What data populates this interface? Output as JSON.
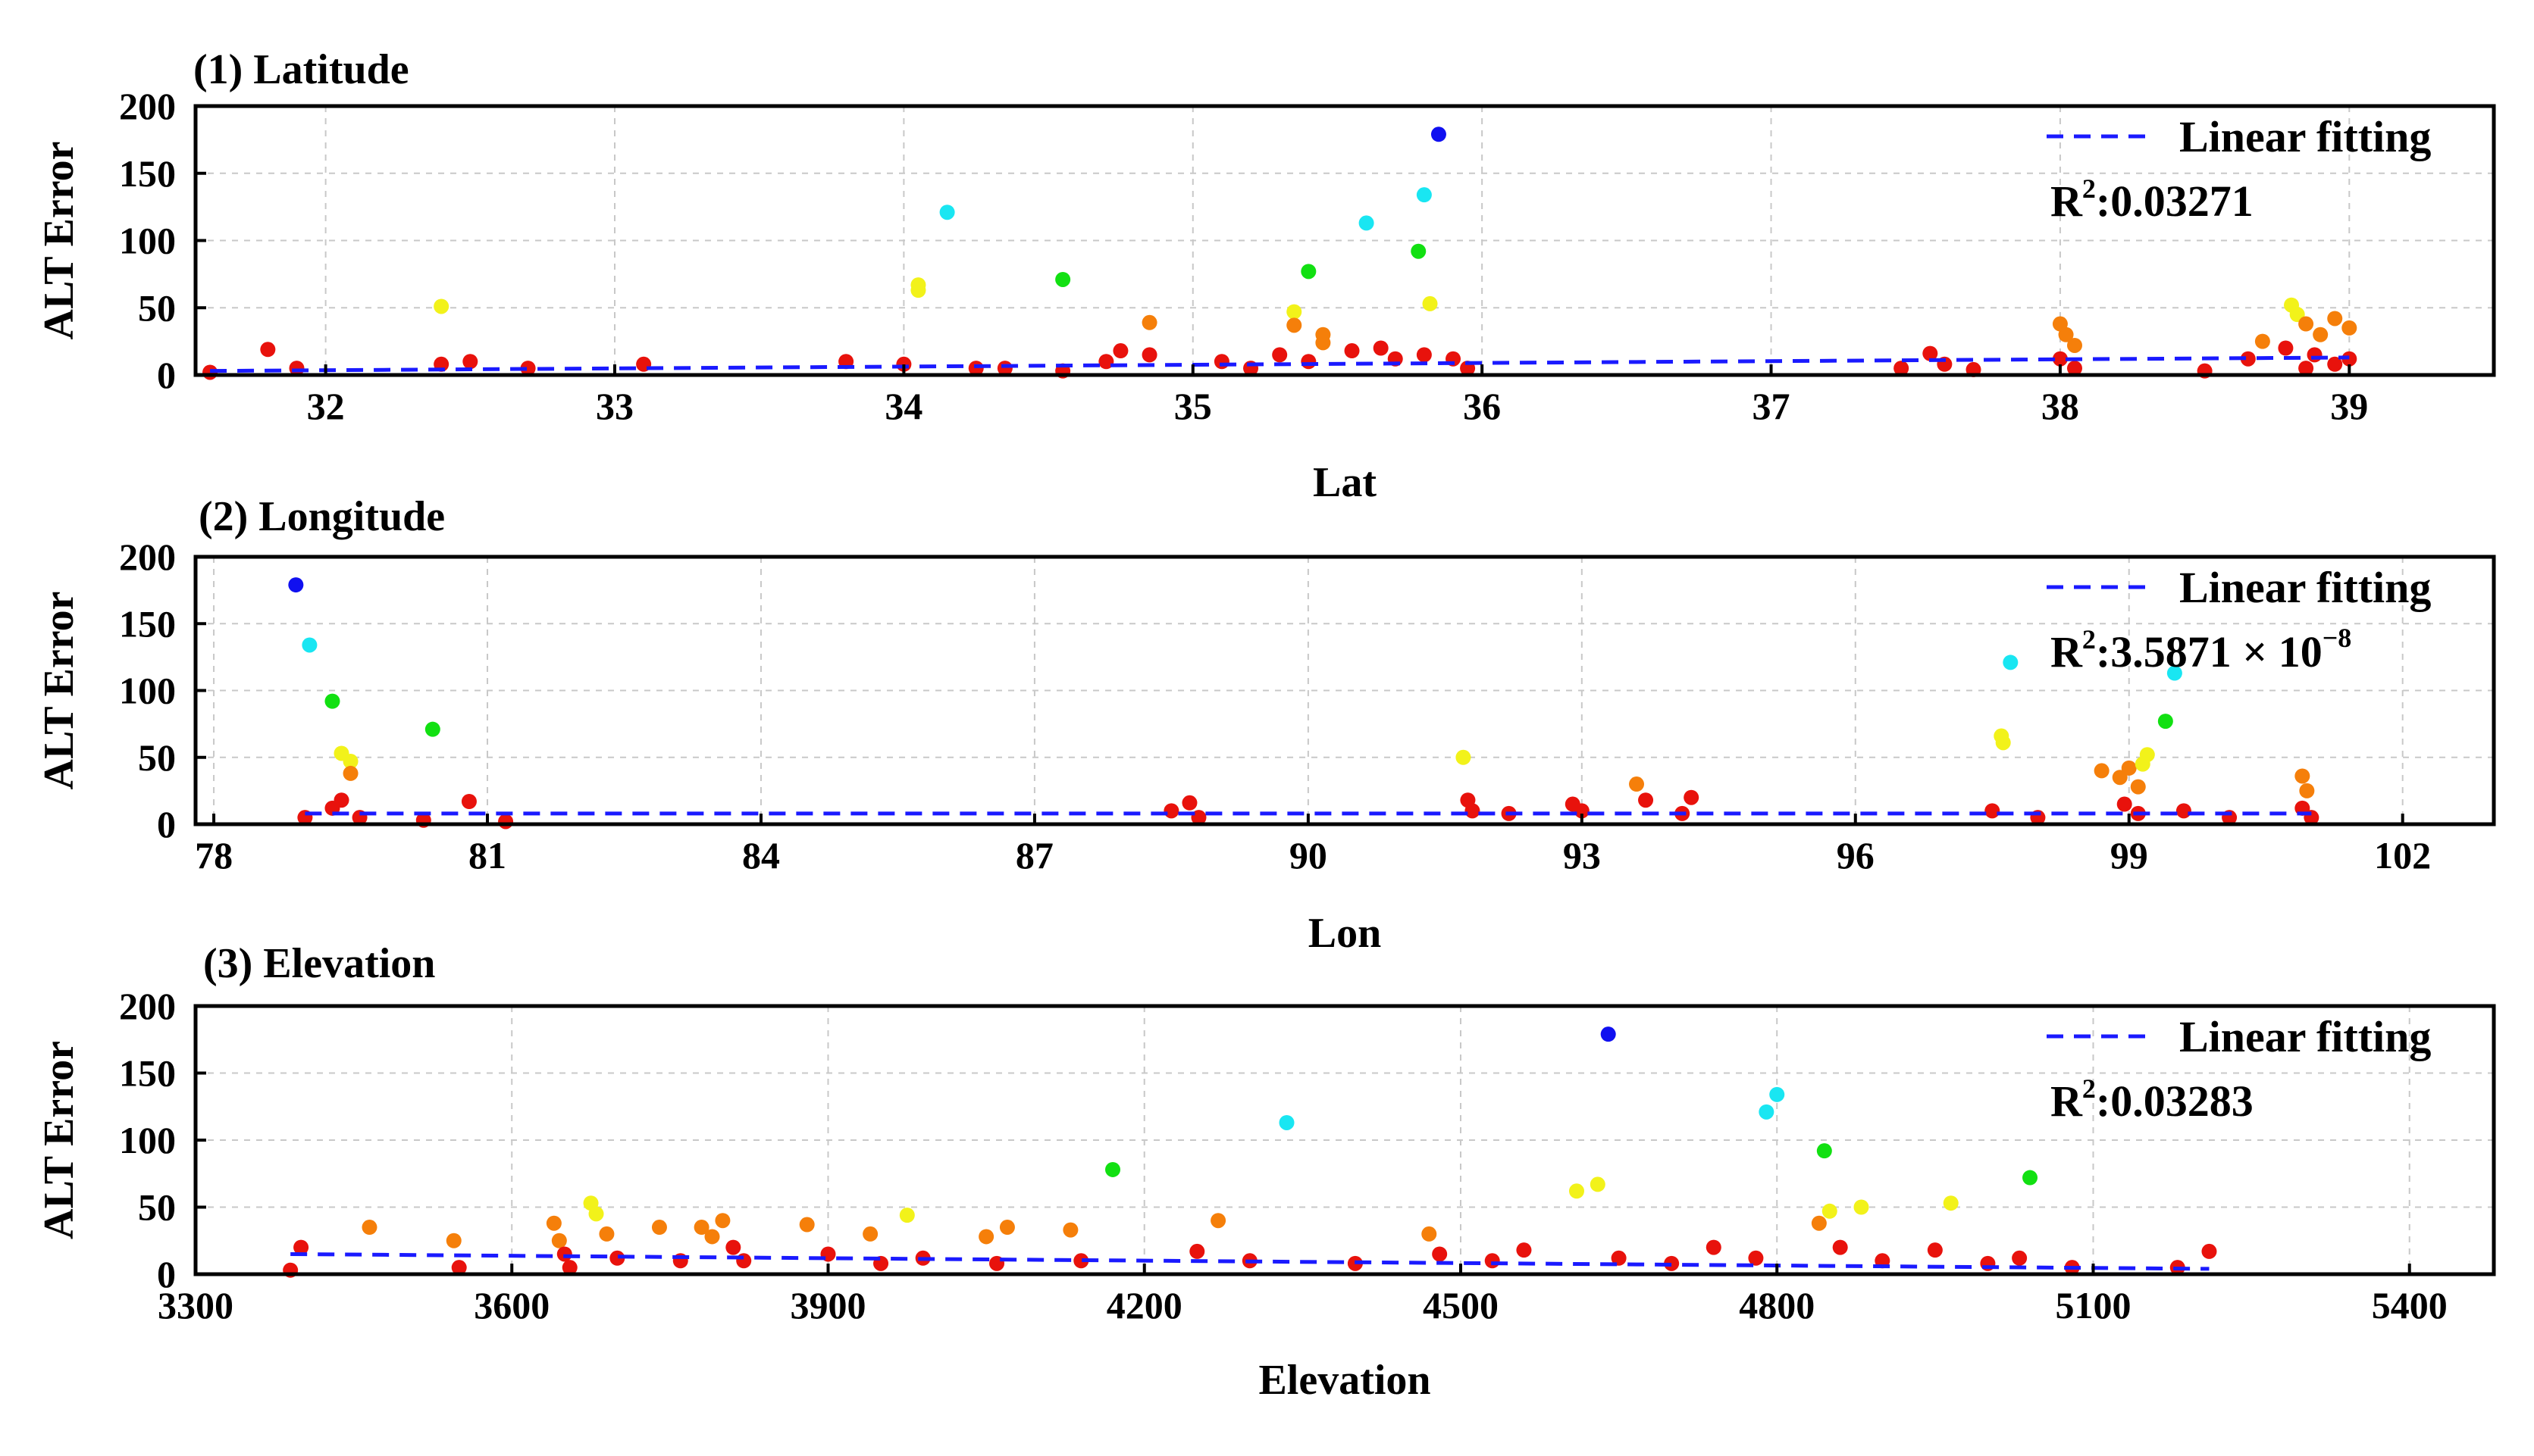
{
  "chart_data": [
    {
      "type": "scatter",
      "title": "(1) Latitude",
      "xlabel": "Lat",
      "ylabel": "ALT Error",
      "xlim": [
        31.55,
        39.5
      ],
      "ylim": [
        0,
        200
      ],
      "xticks": [
        32,
        33,
        34,
        35,
        36,
        37,
        38,
        39
      ],
      "yticks": [
        0,
        50,
        100,
        150,
        200
      ],
      "grid": true,
      "legend": {
        "label": "Linear fitting",
        "position": "top-right"
      },
      "r2_base": "R",
      "r2_sup": "2",
      "r2_value": ":0.03271",
      "fit": {
        "x": [
          31.6,
          39.0
        ],
        "y": [
          3,
          13
        ]
      },
      "points": [
        {
          "x": 31.6,
          "y": 2
        },
        {
          "x": 31.8,
          "y": 19
        },
        {
          "x": 31.9,
          "y": 5
        },
        {
          "x": 32.4,
          "y": 51
        },
        {
          "x": 32.4,
          "y": 8
        },
        {
          "x": 32.5,
          "y": 10
        },
        {
          "x": 32.7,
          "y": 5
        },
        {
          "x": 33.1,
          "y": 8
        },
        {
          "x": 33.8,
          "y": 10
        },
        {
          "x": 34.0,
          "y": 8
        },
        {
          "x": 34.05,
          "y": 67
        },
        {
          "x": 34.05,
          "y": 63
        },
        {
          "x": 34.15,
          "y": 121
        },
        {
          "x": 34.25,
          "y": 5
        },
        {
          "x": 34.35,
          "y": 5
        },
        {
          "x": 34.55,
          "y": 71
        },
        {
          "x": 34.55,
          "y": 3
        },
        {
          "x": 34.7,
          "y": 10
        },
        {
          "x": 34.75,
          "y": 18
        },
        {
          "x": 34.85,
          "y": 39
        },
        {
          "x": 34.85,
          "y": 15
        },
        {
          "x": 35.1,
          "y": 10
        },
        {
          "x": 35.2,
          "y": 5
        },
        {
          "x": 35.3,
          "y": 15
        },
        {
          "x": 35.35,
          "y": 47
        },
        {
          "x": 35.35,
          "y": 37
        },
        {
          "x": 35.4,
          "y": 77
        },
        {
          "x": 35.45,
          "y": 30
        },
        {
          "x": 35.45,
          "y": 24
        },
        {
          "x": 35.4,
          "y": 10
        },
        {
          "x": 35.55,
          "y": 18
        },
        {
          "x": 35.6,
          "y": 113
        },
        {
          "x": 35.65,
          "y": 20
        },
        {
          "x": 35.7,
          "y": 12
        },
        {
          "x": 35.78,
          "y": 92
        },
        {
          "x": 35.8,
          "y": 134
        },
        {
          "x": 35.82,
          "y": 53
        },
        {
          "x": 35.85,
          "y": 179
        },
        {
          "x": 35.8,
          "y": 15
        },
        {
          "x": 35.9,
          "y": 12
        },
        {
          "x": 35.95,
          "y": 5
        },
        {
          "x": 37.45,
          "y": 5
        },
        {
          "x": 37.55,
          "y": 16
        },
        {
          "x": 37.6,
          "y": 8
        },
        {
          "x": 37.7,
          "y": 4
        },
        {
          "x": 38.0,
          "y": 38
        },
        {
          "x": 38.02,
          "y": 30
        },
        {
          "x": 38.05,
          "y": 22
        },
        {
          "x": 38.0,
          "y": 12
        },
        {
          "x": 38.05,
          "y": 5
        },
        {
          "x": 38.5,
          "y": 3
        },
        {
          "x": 38.65,
          "y": 12
        },
        {
          "x": 38.7,
          "y": 25
        },
        {
          "x": 38.8,
          "y": 52
        },
        {
          "x": 38.82,
          "y": 45
        },
        {
          "x": 38.85,
          "y": 38
        },
        {
          "x": 38.9,
          "y": 30
        },
        {
          "x": 38.78,
          "y": 20
        },
        {
          "x": 38.88,
          "y": 15
        },
        {
          "x": 38.95,
          "y": 42
        },
        {
          "x": 38.95,
          "y": 8
        },
        {
          "x": 39.0,
          "y": 35
        },
        {
          "x": 38.85,
          "y": 5
        },
        {
          "x": 39.0,
          "y": 12
        }
      ]
    },
    {
      "type": "scatter",
      "title": "(2) Longitude",
      "xlabel": "Lon",
      "ylabel": "ALT Error",
      "xlim": [
        77.8,
        103.0
      ],
      "ylim": [
        0,
        200
      ],
      "xticks": [
        78,
        81,
        84,
        87,
        90,
        93,
        96,
        99,
        102
      ],
      "yticks": [
        0,
        50,
        100,
        150,
        200
      ],
      "grid": true,
      "legend": {
        "label": "Linear fitting",
        "position": "top-right"
      },
      "r2_base": "R",
      "r2_sup": "2",
      "r2_value": ":3.5871 × 10",
      "r2_exp": "−8",
      "fit": {
        "x": [
          79.0,
          101.0
        ],
        "y": [
          8,
          8
        ]
      },
      "points": [
        {
          "x": 78.9,
          "y": 179
        },
        {
          "x": 79.05,
          "y": 134
        },
        {
          "x": 79.3,
          "y": 92
        },
        {
          "x": 79.4,
          "y": 53
        },
        {
          "x": 79.5,
          "y": 47
        },
        {
          "x": 79.5,
          "y": 38
        },
        {
          "x": 79.4,
          "y": 18
        },
        {
          "x": 79.3,
          "y": 12
        },
        {
          "x": 79.0,
          "y": 5
        },
        {
          "x": 79.6,
          "y": 5
        },
        {
          "x": 80.4,
          "y": 71
        },
        {
          "x": 80.8,
          "y": 17
        },
        {
          "x": 80.3,
          "y": 3
        },
        {
          "x": 81.2,
          "y": 2
        },
        {
          "x": 88.5,
          "y": 10
        },
        {
          "x": 88.7,
          "y": 16
        },
        {
          "x": 88.8,
          "y": 5
        },
        {
          "x": 91.7,
          "y": 50
        },
        {
          "x": 91.75,
          "y": 18
        },
        {
          "x": 91.8,
          "y": 10
        },
        {
          "x": 92.2,
          "y": 8
        },
        {
          "x": 92.9,
          "y": 15
        },
        {
          "x": 93.0,
          "y": 10
        },
        {
          "x": 93.6,
          "y": 30
        },
        {
          "x": 93.7,
          "y": 18
        },
        {
          "x": 94.2,
          "y": 20
        },
        {
          "x": 94.1,
          "y": 8
        },
        {
          "x": 97.5,
          "y": 10
        },
        {
          "x": 97.6,
          "y": 66
        },
        {
          "x": 97.62,
          "y": 61
        },
        {
          "x": 97.7,
          "y": 121
        },
        {
          "x": 98.0,
          "y": 5
        },
        {
          "x": 98.7,
          "y": 40
        },
        {
          "x": 98.9,
          "y": 35
        },
        {
          "x": 99.0,
          "y": 42
        },
        {
          "x": 99.1,
          "y": 28
        },
        {
          "x": 99.2,
          "y": 52
        },
        {
          "x": 99.15,
          "y": 45
        },
        {
          "x": 98.95,
          "y": 15
        },
        {
          "x": 99.1,
          "y": 8
        },
        {
          "x": 99.4,
          "y": 77
        },
        {
          "x": 99.5,
          "y": 113
        },
        {
          "x": 99.6,
          "y": 10
        },
        {
          "x": 100.1,
          "y": 5
        },
        {
          "x": 100.9,
          "y": 36
        },
        {
          "x": 100.95,
          "y": 25
        },
        {
          "x": 100.9,
          "y": 12
        },
        {
          "x": 101.0,
          "y": 5
        }
      ]
    },
    {
      "type": "scatter",
      "title": "(3) Elevation",
      "xlabel": "Elevation",
      "ylabel": "ALT Error",
      "xlim": [
        3300,
        5480
      ],
      "ylim": [
        0,
        200
      ],
      "xticks": [
        3300,
        3600,
        3900,
        4200,
        4500,
        4800,
        5100,
        5400
      ],
      "yticks": [
        0,
        50,
        100,
        150,
        200
      ],
      "grid": true,
      "legend": {
        "label": "Linear fitting",
        "position": "top-right"
      },
      "r2_base": "R",
      "r2_sup": "2",
      "r2_value": ":0.03283",
      "fit": {
        "x": [
          3390,
          5210
        ],
        "y": [
          15,
          4
        ]
      },
      "points": [
        {
          "x": 3390,
          "y": 3
        },
        {
          "x": 3400,
          "y": 20
        },
        {
          "x": 3465,
          "y": 35
        },
        {
          "x": 3545,
          "y": 25
        },
        {
          "x": 3550,
          "y": 5
        },
        {
          "x": 3640,
          "y": 38
        },
        {
          "x": 3645,
          "y": 25
        },
        {
          "x": 3650,
          "y": 15
        },
        {
          "x": 3655,
          "y": 5
        },
        {
          "x": 3675,
          "y": 53
        },
        {
          "x": 3680,
          "y": 45
        },
        {
          "x": 3690,
          "y": 30
        },
        {
          "x": 3700,
          "y": 12
        },
        {
          "x": 3740,
          "y": 35
        },
        {
          "x": 3760,
          "y": 10
        },
        {
          "x": 3780,
          "y": 35
        },
        {
          "x": 3790,
          "y": 28
        },
        {
          "x": 3800,
          "y": 40
        },
        {
          "x": 3810,
          "y": 20
        },
        {
          "x": 3820,
          "y": 10
        },
        {
          "x": 3880,
          "y": 37
        },
        {
          "x": 3900,
          "y": 15
        },
        {
          "x": 3940,
          "y": 30
        },
        {
          "x": 3950,
          "y": 8
        },
        {
          "x": 3975,
          "y": 44
        },
        {
          "x": 3990,
          "y": 12
        },
        {
          "x": 4050,
          "y": 28
        },
        {
          "x": 4070,
          "y": 35
        },
        {
          "x": 4060,
          "y": 8
        },
        {
          "x": 4130,
          "y": 33
        },
        {
          "x": 4140,
          "y": 10
        },
        {
          "x": 4170,
          "y": 78
        },
        {
          "x": 4250,
          "y": 17
        },
        {
          "x": 4270,
          "y": 40
        },
        {
          "x": 4300,
          "y": 10
        },
        {
          "x": 4335,
          "y": 113
        },
        {
          "x": 4400,
          "y": 8
        },
        {
          "x": 4470,
          "y": 30
        },
        {
          "x": 4480,
          "y": 15
        },
        {
          "x": 4530,
          "y": 10
        },
        {
          "x": 4560,
          "y": 18
        },
        {
          "x": 4610,
          "y": 62
        },
        {
          "x": 4630,
          "y": 67
        },
        {
          "x": 4640,
          "y": 179
        },
        {
          "x": 4650,
          "y": 12
        },
        {
          "x": 4700,
          "y": 8
        },
        {
          "x": 4740,
          "y": 20
        },
        {
          "x": 4790,
          "y": 121
        },
        {
          "x": 4800,
          "y": 134
        },
        {
          "x": 4780,
          "y": 12
        },
        {
          "x": 4840,
          "y": 38
        },
        {
          "x": 4845,
          "y": 92
        },
        {
          "x": 4850,
          "y": 47
        },
        {
          "x": 4860,
          "y": 20
        },
        {
          "x": 4880,
          "y": 50
        },
        {
          "x": 4900,
          "y": 10
        },
        {
          "x": 4950,
          "y": 18
        },
        {
          "x": 4965,
          "y": 53
        },
        {
          "x": 5000,
          "y": 8
        },
        {
          "x": 5030,
          "y": 12
        },
        {
          "x": 5040,
          "y": 72
        },
        {
          "x": 5080,
          "y": 5
        },
        {
          "x": 5180,
          "y": 5
        },
        {
          "x": 5210,
          "y": 17
        }
      ]
    }
  ]
}
